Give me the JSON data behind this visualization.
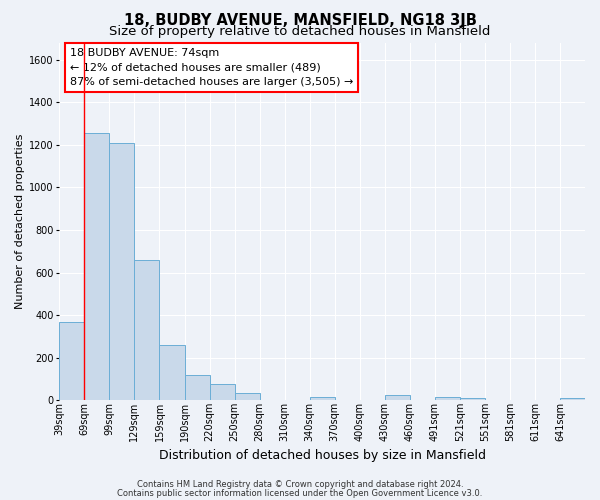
{
  "title": "18, BUDBY AVENUE, MANSFIELD, NG18 3JB",
  "subtitle": "Size of property relative to detached houses in Mansfield",
  "xlabel": "Distribution of detached houses by size in Mansfield",
  "ylabel": "Number of detached properties",
  "bin_labels": [
    "39sqm",
    "69sqm",
    "99sqm",
    "129sqm",
    "159sqm",
    "190sqm",
    "220sqm",
    "250sqm",
    "280sqm",
    "310sqm",
    "340sqm",
    "370sqm",
    "400sqm",
    "430sqm",
    "460sqm",
    "491sqm",
    "521sqm",
    "551sqm",
    "581sqm",
    "611sqm",
    "641sqm"
  ],
  "bar_heights": [
    370,
    1255,
    1210,
    660,
    260,
    120,
    75,
    35,
    0,
    0,
    15,
    0,
    0,
    25,
    0,
    15,
    10,
    0,
    0,
    0,
    10
  ],
  "bar_color": "#c9d9ea",
  "bar_edge_color": "#6baed6",
  "bar_edge_width": 0.7,
  "red_line_x": 1.0,
  "ylim": [
    0,
    1680
  ],
  "yticks": [
    0,
    200,
    400,
    600,
    800,
    1000,
    1200,
    1400,
    1600
  ],
  "annotation_line1": "18 BUDBY AVENUE: 74sqm",
  "annotation_line2": "← 12% of detached houses are smaller (489)",
  "annotation_line3": "87% of semi-detached houses are larger (3,505) →",
  "footer_line1": "Contains HM Land Registry data © Crown copyright and database right 2024.",
  "footer_line2": "Contains public sector information licensed under the Open Government Licence v3.0.",
  "background_color": "#eef2f8",
  "plot_background": "#eef2f8",
  "grid_color": "#ffffff",
  "title_fontsize": 10.5,
  "subtitle_fontsize": 9.5,
  "xlabel_fontsize": 9,
  "ylabel_fontsize": 8,
  "tick_fontsize": 7,
  "annotation_fontsize": 8,
  "footer_fontsize": 6
}
